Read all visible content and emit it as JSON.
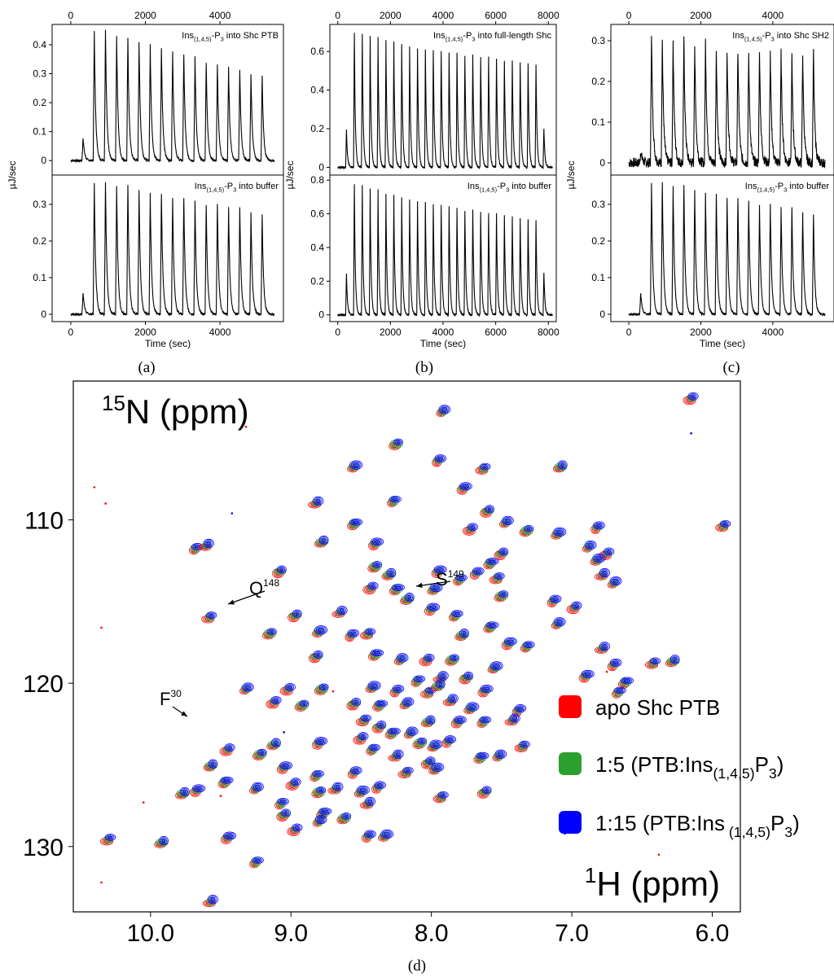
{
  "panel_labels": {
    "a": "(a)",
    "b": "(b)",
    "c": "(c)",
    "d": "(d)"
  },
  "chart_data": [
    {
      "id": "a",
      "type": "line",
      "ylabel": "µJ/sec",
      "xlabel": "Time (sec)",
      "top_axis_ticks": [
        0,
        2000,
        4000
      ],
      "bottom_axis_ticks": [
        0,
        2000,
        4000
      ],
      "xlim": [
        -500,
        5700
      ],
      "upper": {
        "annotation": {
          "prefix": "Ins",
          "sub": "(1,4,5)",
          "mid": "-P",
          "sub2": "3",
          "suffix": " into Shc PTB"
        },
        "ylim": [
          -0.05,
          0.47
        ],
        "yticks": [
          0,
          0.1,
          0.2,
          0.3,
          0.4
        ],
        "peak_times": [
          330,
          630,
          930,
          1230,
          1530,
          1830,
          2130,
          2430,
          2730,
          3030,
          3330,
          3630,
          3930,
          4230,
          4530,
          4830,
          5130
        ],
        "peak_heights": [
          0.08,
          0.45,
          0.45,
          0.43,
          0.42,
          0.41,
          0.4,
          0.39,
          0.38,
          0.37,
          0.36,
          0.34,
          0.33,
          0.32,
          0.31,
          0.3,
          0.29
        ],
        "noise": 0.004
      },
      "lower": {
        "annotation": {
          "prefix": "Ins",
          "sub": "(1,4,5)",
          "mid": "-P",
          "sub2": "3",
          "suffix": " into buffer"
        },
        "ylim": [
          -0.02,
          0.38
        ],
        "yticks": [
          0,
          0.1,
          0.2,
          0.3
        ],
        "peak_times": [
          330,
          630,
          930,
          1230,
          1530,
          1830,
          2130,
          2430,
          2730,
          3030,
          3330,
          3630,
          3930,
          4230,
          4530,
          4830,
          5130
        ],
        "peak_heights": [
          0.06,
          0.36,
          0.36,
          0.35,
          0.35,
          0.34,
          0.33,
          0.33,
          0.32,
          0.32,
          0.31,
          0.3,
          0.3,
          0.29,
          0.29,
          0.28,
          0.27
        ],
        "noise": 0.003
      }
    },
    {
      "id": "b",
      "type": "line",
      "ylabel": "µJ/sec",
      "xlabel": "Time (sec)",
      "top_axis_ticks": [
        0,
        2000,
        4000,
        6000,
        8000
      ],
      "bottom_axis_ticks": [
        0,
        2000,
        4000,
        6000,
        8000
      ],
      "xlim": [
        -300,
        8300
      ],
      "upper": {
        "annotation": {
          "prefix": "Ins",
          "sub": "(1,4,5)",
          "mid": "-P",
          "sub2": "3",
          "suffix": " into full-length Shc"
        },
        "ylim": [
          -0.04,
          0.74
        ],
        "yticks": [
          0,
          0.2,
          0.4,
          0.6
        ],
        "peak_times": [
          330,
          630,
          930,
          1230,
          1530,
          1830,
          2130,
          2430,
          2730,
          3030,
          3330,
          3630,
          3930,
          4230,
          4530,
          4830,
          5130,
          5430,
          5730,
          6030,
          6330,
          6630,
          6930,
          7230,
          7530,
          7830
        ],
        "peak_heights": [
          0.2,
          0.7,
          0.69,
          0.68,
          0.67,
          0.66,
          0.65,
          0.64,
          0.63,
          0.62,
          0.61,
          0.61,
          0.6,
          0.59,
          0.59,
          0.58,
          0.58,
          0.57,
          0.57,
          0.56,
          0.55,
          0.55,
          0.54,
          0.54,
          0.53,
          0.2
        ],
        "noise": 0.005
      },
      "lower": {
        "annotation": {
          "prefix": "Ins",
          "sub": "(1,4,5)",
          "mid": "-P",
          "sub2": "3",
          "suffix": " into buffer"
        },
        "ylim": [
          -0.04,
          0.83
        ],
        "yticks": [
          0,
          0.2,
          0.4,
          0.6,
          0.8
        ],
        "peak_times": [
          330,
          630,
          930,
          1230,
          1530,
          1830,
          2130,
          2430,
          2730,
          3030,
          3330,
          3630,
          3930,
          4230,
          4530,
          4830,
          5130,
          5430,
          5730,
          6030,
          6330,
          6630,
          6930,
          7230,
          7530,
          7830
        ],
        "peak_heights": [
          0.25,
          0.78,
          0.77,
          0.75,
          0.74,
          0.72,
          0.71,
          0.7,
          0.69,
          0.68,
          0.67,
          0.66,
          0.65,
          0.64,
          0.63,
          0.62,
          0.62,
          0.61,
          0.6,
          0.6,
          0.59,
          0.58,
          0.57,
          0.57,
          0.56,
          0.25
        ],
        "noise": 0.006
      }
    },
    {
      "id": "c",
      "type": "line",
      "ylabel": "µJ/sec",
      "xlabel": "Time (sec)",
      "top_axis_ticks": [
        0,
        2000,
        4000
      ],
      "bottom_axis_ticks": [
        0,
        2000,
        4000
      ],
      "xlim": [
        -500,
        5700
      ],
      "upper": {
        "annotation": {
          "prefix": "Ins",
          "sub": "(1,4,5)",
          "mid": "-P",
          "sub2": "3",
          "suffix": " into Shc SH2"
        },
        "ylim": [
          -0.03,
          0.34
        ],
        "yticks": [
          0,
          0.1,
          0.2,
          0.3
        ],
        "peak_times": [
          330,
          630,
          930,
          1230,
          1530,
          1830,
          2130,
          2430,
          2730,
          3030,
          3330,
          3630,
          3930,
          4230,
          4530,
          4830,
          5130
        ],
        "peak_heights": [
          0.03,
          0.32,
          0.3,
          0.3,
          0.3,
          0.29,
          0.3,
          0.28,
          0.28,
          0.28,
          0.27,
          0.28,
          0.27,
          0.27,
          0.26,
          0.27,
          0.27
        ],
        "noise": 0.012
      },
      "lower": {
        "annotation": {
          "prefix": "Ins",
          "sub": "(1,4,5)",
          "mid": "-P",
          "sub2": "3",
          "suffix": " into buffer"
        },
        "ylim": [
          -0.02,
          0.38
        ],
        "yticks": [
          0,
          0.1,
          0.2,
          0.3
        ],
        "peak_times": [
          330,
          630,
          930,
          1230,
          1530,
          1830,
          2130,
          2430,
          2730,
          3030,
          3330,
          3630,
          3930,
          4230,
          4530,
          4830,
          5130
        ],
        "peak_heights": [
          0.06,
          0.36,
          0.36,
          0.35,
          0.35,
          0.34,
          0.33,
          0.33,
          0.32,
          0.32,
          0.31,
          0.3,
          0.3,
          0.29,
          0.29,
          0.28,
          0.27
        ],
        "noise": 0.003
      }
    },
    {
      "id": "d",
      "type": "scatter",
      "xlabel_html": {
        "sup": "1",
        "text": "H (ppm)"
      },
      "ylabel_html": {
        "sup": "15",
        "text": "N (ppm)"
      },
      "xlim": [
        10.55,
        5.8
      ],
      "ylim": [
        134,
        101.5
      ],
      "xticks": [
        10.0,
        9.0,
        8.0,
        7.0,
        6.0
      ],
      "xtick_labels": [
        "10.0",
        "9.0",
        "8.0",
        "7.0",
        "6.0"
      ],
      "yticks": [
        110,
        120,
        130
      ],
      "ytick_labels": [
        "110",
        "120",
        "130"
      ],
      "legend_position": "right",
      "series": [
        {
          "name": "apo Shc PTB",
          "color": "#ff0000"
        },
        {
          "name": "1:5 (PTB:Ins(1,4,5)P3)",
          "color": "#2ca02c",
          "label_parts": {
            "prefix": "1:5 (PTB:Ins",
            "sub": "(1,4,5)",
            "mid": "P",
            "sub2": "3",
            "suffix": ")"
          }
        },
        {
          "name": "1:15 (PTB:Ins(1,4,5)P3)",
          "color": "#0000ff",
          "label_parts": {
            "prefix": "1:15 (PTB:Ins",
            "sub": " (1,4,5)",
            "mid": "P",
            "sub2": "3",
            "suffix": ")"
          }
        }
      ],
      "annotations": [
        {
          "label": "Q",
          "sup": "148",
          "peak": [
            9.57,
            115.9
          ]
        },
        {
          "label": "S",
          "sup": "149",
          "peak": [
            8.17,
            114.8
          ]
        },
        {
          "label": "F",
          "sup": "30",
          "peak": [
            9.77,
            126.7
          ]
        }
      ],
      "peaks": [
        [
          7.92,
          103.3
        ],
        [
          6.15,
          102.5
        ],
        [
          8.25,
          105.3
        ],
        [
          8.55,
          106.7
        ],
        [
          7.95,
          106.3
        ],
        [
          7.63,
          106.8
        ],
        [
          7.08,
          106.7
        ],
        [
          7.77,
          108.0
        ],
        [
          8.27,
          108.8
        ],
        [
          8.82,
          108.9
        ],
        [
          7.6,
          109.4
        ],
        [
          8.55,
          110.2
        ],
        [
          7.47,
          110.1
        ],
        [
          7.72,
          110.5
        ],
        [
          7.32,
          110.6
        ],
        [
          7.1,
          110.8
        ],
        [
          6.82,
          110.4
        ],
        [
          5.92,
          110.3
        ],
        [
          8.78,
          111.3
        ],
        [
          8.4,
          111.4
        ],
        [
          9.68,
          111.7
        ],
        [
          9.6,
          111.5
        ],
        [
          7.5,
          112.0
        ],
        [
          7.58,
          112.6
        ],
        [
          6.88,
          111.6
        ],
        [
          6.75,
          112.0
        ],
        [
          8.4,
          112.8
        ],
        [
          6.82,
          112.4
        ],
        [
          7.68,
          113.2
        ],
        [
          7.53,
          113.5
        ],
        [
          8.3,
          113.3
        ],
        [
          7.95,
          113.1
        ],
        [
          7.8,
          113.6
        ],
        [
          6.78,
          113.3
        ],
        [
          9.08,
          113.1
        ],
        [
          8.25,
          114.2
        ],
        [
          6.7,
          113.8
        ],
        [
          8.43,
          114.1
        ],
        [
          7.5,
          114.6
        ],
        [
          7.98,
          114.2
        ],
        [
          7.13,
          114.9
        ],
        [
          9.58,
          115.9
        ],
        [
          8.17,
          114.8
        ],
        [
          8.0,
          115.4
        ],
        [
          7.83,
          115.8
        ],
        [
          8.65,
          115.6
        ],
        [
          8.97,
          115.8
        ],
        [
          7.58,
          116.5
        ],
        [
          7.1,
          116.3
        ],
        [
          6.98,
          115.3
        ],
        [
          9.15,
          116.9
        ],
        [
          8.8,
          116.8
        ],
        [
          8.57,
          117.0
        ],
        [
          8.45,
          116.9
        ],
        [
          7.78,
          117.0
        ],
        [
          7.45,
          117.5
        ],
        [
          7.32,
          117.7
        ],
        [
          6.78,
          117.8
        ],
        [
          8.82,
          118.3
        ],
        [
          8.4,
          118.2
        ],
        [
          8.22,
          118.5
        ],
        [
          8.03,
          118.5
        ],
        [
          7.85,
          118.5
        ],
        [
          7.55,
          119.0
        ],
        [
          6.7,
          118.8
        ],
        [
          6.42,
          118.7
        ],
        [
          6.28,
          118.6
        ],
        [
          6.9,
          119.5
        ],
        [
          8.1,
          119.8
        ],
        [
          7.93,
          119.6
        ],
        [
          7.75,
          119.6
        ],
        [
          6.62,
          119.9
        ],
        [
          9.32,
          120.3
        ],
        [
          9.02,
          120.3
        ],
        [
          8.78,
          120.3
        ],
        [
          8.42,
          120.2
        ],
        [
          8.25,
          120.4
        ],
        [
          8.02,
          120.5
        ],
        [
          7.95,
          120.1
        ],
        [
          7.62,
          120.4
        ],
        [
          6.67,
          120.5
        ],
        [
          7.86,
          121.0
        ],
        [
          8.55,
          121.2
        ],
        [
          8.37,
          121.3
        ],
        [
          8.18,
          121.2
        ],
        [
          9.12,
          121.1
        ],
        [
          8.92,
          121.3
        ],
        [
          7.72,
          121.5
        ],
        [
          7.38,
          121.6
        ],
        [
          8.48,
          122.2
        ],
        [
          8.02,
          122.3
        ],
        [
          7.81,
          122.3
        ],
        [
          7.63,
          122.3
        ],
        [
          7.42,
          122.2
        ],
        [
          8.37,
          122.6
        ],
        [
          8.28,
          123.0
        ],
        [
          8.15,
          123.0
        ],
        [
          8.5,
          123.3
        ],
        [
          8.08,
          123.6
        ],
        [
          7.98,
          123.8
        ],
        [
          7.88,
          123.5
        ],
        [
          7.35,
          123.8
        ],
        [
          9.12,
          123.7
        ],
        [
          8.8,
          123.6
        ],
        [
          8.42,
          124.0
        ],
        [
          8.25,
          124.4
        ],
        [
          8.02,
          124.8
        ],
        [
          7.65,
          124.5
        ],
        [
          7.52,
          124.4
        ],
        [
          9.45,
          124.0
        ],
        [
          9.22,
          124.3
        ],
        [
          7.97,
          125.2
        ],
        [
          8.55,
          125.4
        ],
        [
          8.18,
          125.4
        ],
        [
          9.57,
          125.0
        ],
        [
          9.05,
          125.1
        ],
        [
          8.82,
          125.6
        ],
        [
          8.68,
          126.4
        ],
        [
          7.62,
          126.6
        ],
        [
          9.47,
          126.0
        ],
        [
          9.25,
          126.4
        ],
        [
          8.98,
          126.1
        ],
        [
          8.8,
          126.6
        ],
        [
          8.5,
          126.6
        ],
        [
          8.38,
          126.3
        ],
        [
          7.93,
          126.9
        ],
        [
          9.77,
          126.7
        ],
        [
          9.67,
          126.5
        ],
        [
          9.07,
          127.3
        ],
        [
          8.45,
          127.3
        ],
        [
          9.05,
          128.0
        ],
        [
          8.77,
          127.9
        ],
        [
          8.8,
          128.4
        ],
        [
          8.97,
          128.9
        ],
        [
          8.62,
          128.2
        ],
        [
          8.33,
          129.3
        ],
        [
          8.45,
          129.3
        ],
        [
          10.3,
          129.5
        ],
        [
          9.92,
          129.7
        ],
        [
          9.45,
          129.4
        ],
        [
          9.25,
          130.9
        ],
        [
          9.57,
          133.3
        ]
      ],
      "noise_points": [
        [
          9.32,
          104.3
        ],
        [
          10.32,
          109.0
        ],
        [
          9.42,
          109.6
        ],
        [
          10.4,
          108.0
        ],
        [
          10.35,
          116.6
        ],
        [
          9.05,
          123.0
        ],
        [
          6.75,
          119.3
        ],
        [
          8.7,
          120.5
        ],
        [
          7.05,
          129.2
        ],
        [
          10.05,
          127.3
        ],
        [
          9.5,
          126.9
        ],
        [
          6.15,
          104.7
        ],
        [
          10.35,
          132.2
        ],
        [
          6.38,
          130.5
        ]
      ]
    }
  ]
}
